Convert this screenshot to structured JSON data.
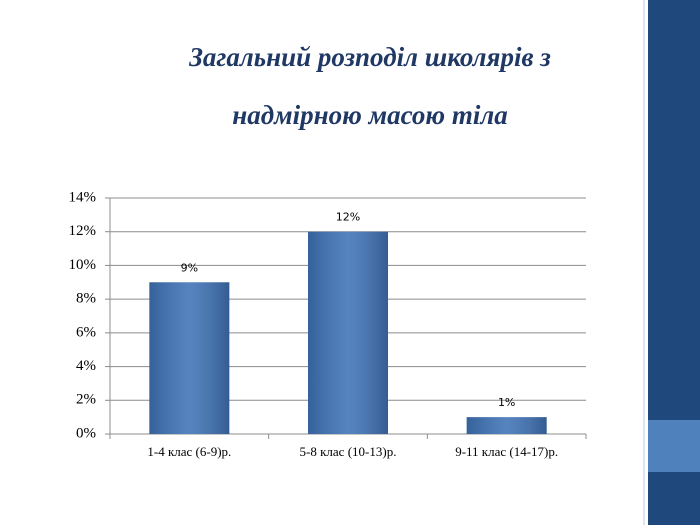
{
  "chart_data": {
    "type": "bar",
    "title": "Загальний розподіл школярів з надмірною масою тіла",
    "categories": [
      "1-4 клас (6-9)р.",
      "5-8 клас (10-13)р.",
      "9-11 клас (14-17)р."
    ],
    "values": [
      9,
      12,
      1
    ],
    "value_labels": [
      "9%",
      "12%",
      "1%"
    ],
    "color": "#3f73b6",
    "ylim": [
      0,
      14
    ],
    "yticks": [
      {
        "value": 0,
        "label": "0%"
      },
      {
        "value": 2,
        "label": "2%"
      },
      {
        "value": 4,
        "label": "4%"
      },
      {
        "value": 6,
        "label": "6%"
      },
      {
        "value": 8,
        "label": "8%"
      },
      {
        "value": 10,
        "label": "10%"
      },
      {
        "value": 12,
        "label": "12%"
      },
      {
        "value": 14,
        "label": "14%"
      }
    ],
    "grid": true
  }
}
